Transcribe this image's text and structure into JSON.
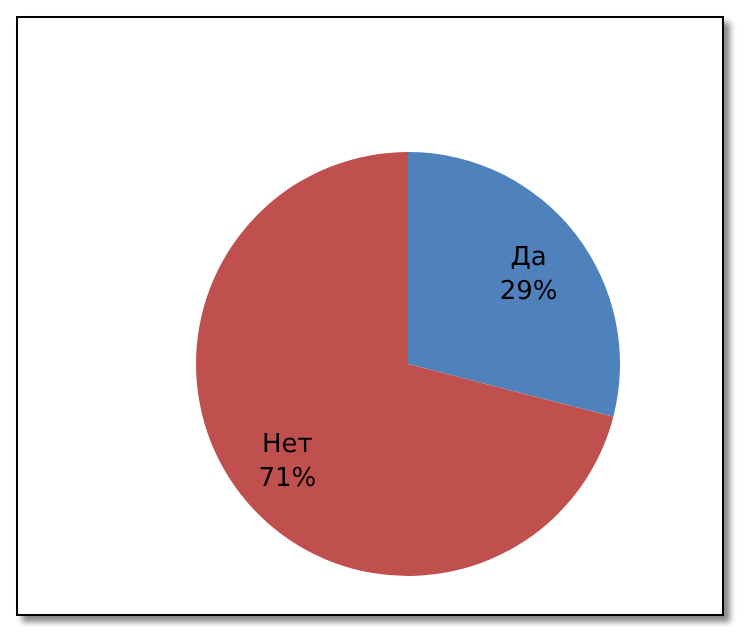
{
  "chart_data": {
    "type": "pie",
    "categories": [
      "Да",
      "Нет"
    ],
    "values": [
      29,
      71
    ],
    "colors": [
      "#4f81bd",
      "#c0504d"
    ],
    "value_labels": [
      "29%",
      "71%"
    ]
  }
}
